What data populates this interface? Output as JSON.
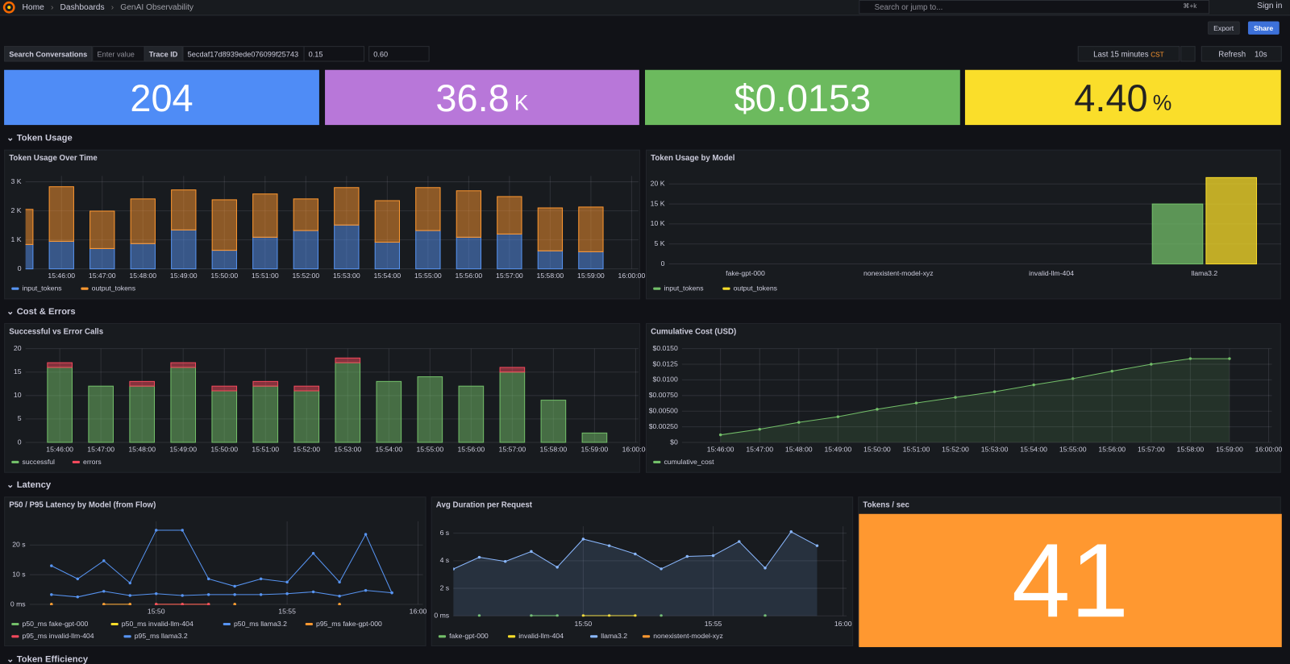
{
  "nav": {
    "breadcrumbs": [
      "Home",
      "Dashboards",
      "GenAI Observability"
    ],
    "search": "Search or jump to...",
    "shortcut": "⌘+k",
    "sign_in": "Sign in"
  },
  "toolbar": {
    "export": "Export",
    "share": "Share"
  },
  "variables": [
    {
      "label": "Search Conversations",
      "value": "Enter value"
    },
    {
      "label": "Trace ID",
      "value": "5ecdaf17d8939ede076099f25743"
    },
    {
      "value": "0.15"
    },
    {
      "value": "0.60"
    }
  ],
  "time_picker": {
    "range": "Last 15 minutes",
    "zone": "CST",
    "refresh": "Refresh",
    "interval": "10s"
  },
  "stats": [
    {
      "value": "204",
      "color": "#4f8cf6"
    },
    {
      "value": "36.8",
      "unit": "K",
      "color": "#b877d9"
    },
    {
      "value": "$0.0153",
      "color": "#6cba5e"
    },
    {
      "value": "4.40",
      "unit": "%",
      "color": "#fade2a"
    }
  ],
  "sections": [
    "Token Usage",
    "Cost & Errors",
    "Latency",
    "Token Efficiency"
  ],
  "chart_data": [
    {
      "type": "bar",
      "stacked": true,
      "title": "Token Usage Over Time",
      "x": [
        "15:45:00",
        "15:46:00",
        "15:47:00",
        "15:48:00",
        "15:49:00",
        "15:50:00",
        "15:51:00",
        "15:52:00",
        "15:53:00",
        "15:54:00",
        "15:55:00",
        "15:56:00",
        "15:57:00",
        "15:58:00",
        "15:59:00"
      ],
      "xlim": [
        "15:45:07",
        "16:00:10"
      ],
      "xticks": [
        "15:46:00",
        "15:47:00",
        "15:48:00",
        "15:49:00",
        "15:50:00",
        "15:51:00",
        "15:52:00",
        "15:53:00",
        "15:54:00",
        "15:55:00",
        "15:56:00",
        "15:57:00",
        "15:58:00",
        "15:59:00",
        "16:00:00"
      ],
      "ylim": [
        0,
        3200
      ],
      "yticks": [
        0,
        {
          "value": 1000,
          "label": "1 K"
        },
        {
          "value": 2000,
          "label": "2 K"
        },
        {
          "value": 3000,
          "label": "3 K"
        }
      ],
      "grid": true,
      "series": [
        {
          "name": "input_tokens",
          "color": "#5794f2",
          "values": [
            840,
            950,
            700,
            870,
            1340,
            640,
            1090,
            1320,
            1510,
            920,
            1320,
            1090,
            1200,
            620,
            590
          ]
        },
        {
          "name": "output_tokens",
          "color": "#ff9830",
          "values": [
            1210,
            1880,
            1290,
            1540,
            1380,
            1740,
            1490,
            1090,
            1290,
            1430,
            1480,
            1600,
            1290,
            1480,
            1540
          ]
        }
      ]
    },
    {
      "type": "bar",
      "stacked": false,
      "title": "Token Usage by Model",
      "categories": [
        "fake-gpt-000",
        "nonexistent-model-xyz",
        "invalid-llm-404",
        "llama3.2"
      ],
      "ylim": [
        0,
        22000
      ],
      "yticks": [
        0,
        {
          "value": 5000,
          "label": "5 K"
        },
        {
          "value": 10000,
          "label": "10 K"
        },
        {
          "value": 15000,
          "label": "15 K"
        },
        {
          "value": 20000,
          "label": "20 K"
        }
      ],
      "grid": true,
      "series": [
        {
          "name": "input_tokens",
          "color": "#73bf69",
          "values": [
            0,
            0,
            0,
            15000
          ]
        },
        {
          "name": "output_tokens",
          "color": "#fade2a",
          "values": [
            0,
            0,
            0,
            21600
          ]
        }
      ]
    },
    {
      "type": "bar",
      "stacked": true,
      "title": "Successful vs Error Calls",
      "x": [
        "15:46:00",
        "15:47:00",
        "15:48:00",
        "15:49:00",
        "15:50:00",
        "15:51:00",
        "15:52:00",
        "15:53:00",
        "15:54:00",
        "15:55:00",
        "15:56:00",
        "15:57:00",
        "15:58:00",
        "15:59:00"
      ],
      "xlim": [
        "15:45:10",
        "16:00:04"
      ],
      "xticks": [
        "15:46:00",
        "15:47:00",
        "15:48:00",
        "15:49:00",
        "15:50:00",
        "15:51:00",
        "15:52:00",
        "15:53:00",
        "15:54:00",
        "15:55:00",
        "15:56:00",
        "15:57:00",
        "15:58:00",
        "15:59:00",
        "16:00:00"
      ],
      "ylim": [
        0,
        20
      ],
      "yticks": [
        0,
        5,
        10,
        15,
        20
      ],
      "grid": true,
      "series": [
        {
          "name": "successful",
          "color": "#73bf69",
          "values": [
            16,
            12,
            12,
            16,
            11,
            12,
            11,
            17,
            13,
            14,
            12,
            15,
            9,
            2
          ]
        },
        {
          "name": "errors",
          "color": "#f2495c",
          "values": [
            1,
            0,
            1,
            1,
            1,
            1,
            1,
            1,
            0,
            0,
            0,
            1,
            0,
            0
          ]
        }
      ]
    },
    {
      "type": "line",
      "title": "Cumulative Cost (USD)",
      "points": true,
      "x": [
        "15:46:00",
        "15:47:00",
        "15:48:00",
        "15:49:00",
        "15:50:00",
        "15:51:00",
        "15:52:00",
        "15:53:00",
        "15:54:00",
        "15:55:00",
        "15:56:00",
        "15:57:00",
        "15:58:00",
        "15:59:00"
      ],
      "xlim": [
        "15:45:01",
        "16:00:05"
      ],
      "xticks": [
        "15:46:00",
        "15:47:00",
        "15:48:00",
        "15:49:00",
        "15:50:00",
        "15:51:00",
        "15:52:00",
        "15:53:00",
        "15:54:00",
        "15:55:00",
        "15:56:00",
        "15:57:00",
        "15:58:00",
        "15:59:00",
        "16:00:00"
      ],
      "ylim": [
        0,
        0.015
      ],
      "yticks": [
        {
          "value": 0,
          "label": "$0"
        },
        {
          "value": 0.0025,
          "label": "$0.00250"
        },
        {
          "value": 0.005,
          "label": "$0.00500"
        },
        {
          "value": 0.0075,
          "label": "$0.00750"
        },
        {
          "value": 0.01,
          "label": "$0.0100"
        },
        {
          "value": 0.0125,
          "label": "$0.0125"
        },
        {
          "value": 0.015,
          "label": "$0.0150"
        }
      ],
      "grid": true,
      "series": [
        {
          "name": "cumulative_cost",
          "color": "#73bf69",
          "fill": true,
          "values": [
            0.0012,
            0.0021,
            0.0032,
            0.0041,
            0.0053,
            0.0063,
            0.0072,
            0.0081,
            0.0092,
            0.0102,
            0.0114,
            0.0125,
            0.0134,
            0.0134
          ]
        }
      ]
    },
    {
      "type": "line",
      "title": "P50 / P95 Latency by Model (from Flow)",
      "points": true,
      "x": [
        "15:46",
        "15:47",
        "15:48",
        "15:49",
        "15:50",
        "15:51",
        "15:52",
        "15:53",
        "15:54",
        "15:55",
        "15:56",
        "15:57",
        "15:58",
        "15:59"
      ],
      "xlim": [
        "15:45:10",
        "16:00:11"
      ],
      "xticks": [
        "15:50",
        "15:55",
        "16:00"
      ],
      "ylim": [
        0,
        28
      ],
      "yticks": [
        {
          "value": 0,
          "label": "0 ms"
        },
        {
          "value": 10,
          "label": "10 s"
        },
        {
          "value": 20,
          "label": "20 s"
        }
      ],
      "grid": true,
      "series": [
        {
          "name": "p50_ms fake-gpt-000",
          "color": "#73bf69",
          "values": [
            0.02,
            null,
            0.02,
            0.02,
            null,
            null,
            null,
            0.02,
            null,
            null,
            null,
            0.02,
            null,
            null
          ]
        },
        {
          "name": "p50_ms invalid-llm-404",
          "color": "#fade2a",
          "values": [
            null,
            null,
            null,
            null,
            0.02,
            0.02,
            0.02,
            null,
            null,
            null,
            null,
            null,
            null,
            null
          ]
        },
        {
          "name": "p50_ms llama3.2",
          "color": "#5794f2",
          "values": [
            3.3,
            2.5,
            4.4,
            3,
            3.6,
            3,
            3.3,
            3.3,
            3.3,
            3.6,
            4.2,
            2.8,
            4.7,
            3.9
          ]
        },
        {
          "name": "p95_ms fake-gpt-000",
          "color": "#ff9830",
          "values": [
            0.02,
            null,
            0.02,
            0.02,
            null,
            null,
            null,
            0.02,
            null,
            null,
            null,
            0.02,
            null,
            null
          ]
        },
        {
          "name": "p95_ms invalid-llm-404",
          "color": "#f2495c",
          "values": [
            null,
            null,
            null,
            null,
            0.02,
            0.02,
            0.02,
            null,
            null,
            null,
            null,
            null,
            null,
            null
          ]
        },
        {
          "name": "p95_ms llama3.2",
          "color": "#5794f2",
          "values": [
            13,
            8.6,
            14.7,
            7.2,
            25,
            25,
            8.6,
            6.1,
            8.6,
            7.5,
            17.2,
            7.5,
            23.6,
            3.9
          ]
        }
      ]
    },
    {
      "type": "line",
      "title": "Avg Duration per Request",
      "points": true,
      "x": [
        "15:45",
        "15:46",
        "15:47",
        "15:48",
        "15:49",
        "15:50",
        "15:51",
        "15:52",
        "15:53",
        "15:54",
        "15:55",
        "15:56",
        "15:57",
        "15:58",
        "15:59"
      ],
      "xlim": [
        "15:45:00",
        "16:00:08"
      ],
      "xticks": [
        "15:50",
        "15:55",
        "16:00"
      ],
      "ylim": [
        0,
        6.5
      ],
      "yticks": [
        {
          "value": 0,
          "label": "0 ms"
        },
        {
          "value": 2,
          "label": "2 s"
        },
        {
          "value": 4,
          "label": "4 s"
        },
        {
          "value": 6,
          "label": "6 s"
        }
      ],
      "grid": true,
      "series": [
        {
          "name": "fake-gpt-000",
          "color": "#73bf69",
          "values": [
            null,
            0.02,
            null,
            0.02,
            0.02,
            null,
            null,
            null,
            0.02,
            null,
            null,
            null,
            0.02,
            null,
            null
          ]
        },
        {
          "name": "invalid-llm-404",
          "color": "#fade2a",
          "values": [
            null,
            null,
            null,
            null,
            null,
            0.02,
            0.02,
            0.02,
            null,
            null,
            null,
            null,
            null,
            null,
            null
          ]
        },
        {
          "name": "llama3.2",
          "color": "#8ab8ff",
          "fill": true,
          "values": [
            3.4,
            4.25,
            3.95,
            4.67,
            3.53,
            5.57,
            5.09,
            4.49,
            3.41,
            4.31,
            4.37,
            5.39,
            3.47,
            6.1,
            5.09
          ]
        },
        {
          "name": "nonexistent-model-xyz",
          "color": "#ff9830",
          "values": [
            null,
            null,
            null,
            null,
            null,
            null,
            null,
            null,
            null,
            null,
            null,
            null,
            null,
            null,
            null
          ]
        }
      ]
    }
  ],
  "tokens_per_sec": {
    "title": "Tokens / sec",
    "value": "41",
    "color": "#ff9830"
  }
}
